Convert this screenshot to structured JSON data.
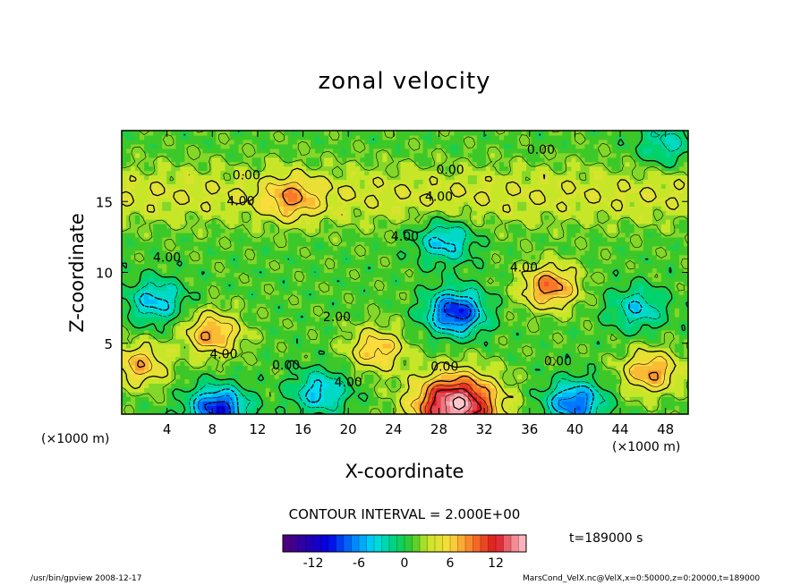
{
  "chart_data": {
    "type": "heatmap",
    "title": "zonal velocity",
    "xlabel": "X-coordinate",
    "ylabel": "Z-coordinate",
    "x_unit": "(×1000 m)",
    "xlim": [
      0,
      50
    ],
    "ylim": [
      0,
      20
    ],
    "x_ticks": [
      "4",
      "8",
      "12",
      "16",
      "20",
      "24",
      "28",
      "32",
      "36",
      "40",
      "44",
      "48"
    ],
    "y_ticks": [
      "5",
      "10",
      "15"
    ],
    "contour_interval": "CONTOUR INTERVAL = 2.000E+00",
    "contour_labels": [
      {
        "text": "0.00",
        "x": 37,
        "z": 18.6
      },
      {
        "text": "0.00",
        "x": 29,
        "z": 17.2
      },
      {
        "text": "0.00",
        "x": 11,
        "z": 16.8
      },
      {
        "text": "4.00",
        "x": 10.5,
        "z": 15.0
      },
      {
        "text": "4.00",
        "x": 28,
        "z": 15.3
      },
      {
        "text": "4.00",
        "x": 25,
        "z": 12.5
      },
      {
        "text": "4.00",
        "x": 4,
        "z": 11.0
      },
      {
        "text": "4.00",
        "x": 35.5,
        "z": 10.3
      },
      {
        "text": "4.00",
        "x": 9,
        "z": 4.2
      },
      {
        "text": "2.00",
        "x": 19,
        "z": 6.8
      },
      {
        "text": "0.00",
        "x": 14.5,
        "z": 3.4
      },
      {
        "text": "4.00",
        "x": 20,
        "z": 2.2
      },
      {
        "text": "0.00",
        "x": 28.5,
        "z": 3.3
      },
      {
        "text": "0.00",
        "x": 38.5,
        "z": 3.7
      }
    ],
    "features": [
      {
        "kind": "max",
        "x": 8,
        "z": 5.7,
        "value": 7
      },
      {
        "kind": "max",
        "x": 37.8,
        "z": 9.0,
        "value": 8
      },
      {
        "kind": "max",
        "x": 46.7,
        "z": 3.0,
        "value": 7
      },
      {
        "kind": "max",
        "x": 1.6,
        "z": 3.5,
        "value": 6
      },
      {
        "kind": "max",
        "x": 15,
        "z": 15.2,
        "value": 5
      },
      {
        "kind": "max",
        "x": 22.5,
        "z": 4.6,
        "value": 6
      },
      {
        "kind": "max",
        "x": 29.5,
        "z": 0.6,
        "value": 15
      },
      {
        "kind": "min",
        "x": 29.5,
        "z": 7.2,
        "value": -11
      },
      {
        "kind": "min",
        "x": 28.5,
        "z": 12.2,
        "value": -6
      },
      {
        "kind": "min",
        "x": 3,
        "z": 8.0,
        "value": -6
      },
      {
        "kind": "min",
        "x": 8.5,
        "z": 0.4,
        "value": -11
      },
      {
        "kind": "min",
        "x": 40,
        "z": 0.8,
        "value": -9
      },
      {
        "kind": "min",
        "x": 17.5,
        "z": 1.6,
        "value": -6
      },
      {
        "kind": "min",
        "x": 45.5,
        "z": 7.5,
        "value": -5
      },
      {
        "kind": "min",
        "x": 48,
        "z": 19.0,
        "value": -4
      }
    ],
    "colorbar": {
      "vmin": -16,
      "vmax": 16,
      "ticks": [
        "-12",
        "-6",
        "0",
        "6",
        "12"
      ],
      "tick_values": [
        -12,
        -6,
        0,
        6,
        12
      ]
    },
    "time_label": "t=189000  s"
  },
  "footer": {
    "left": "/usr/bin/gpview   2008-12-17",
    "right": "MarsCond_VelX.nc@VelX,x=0:50000,z=0:20000,t=189000"
  }
}
